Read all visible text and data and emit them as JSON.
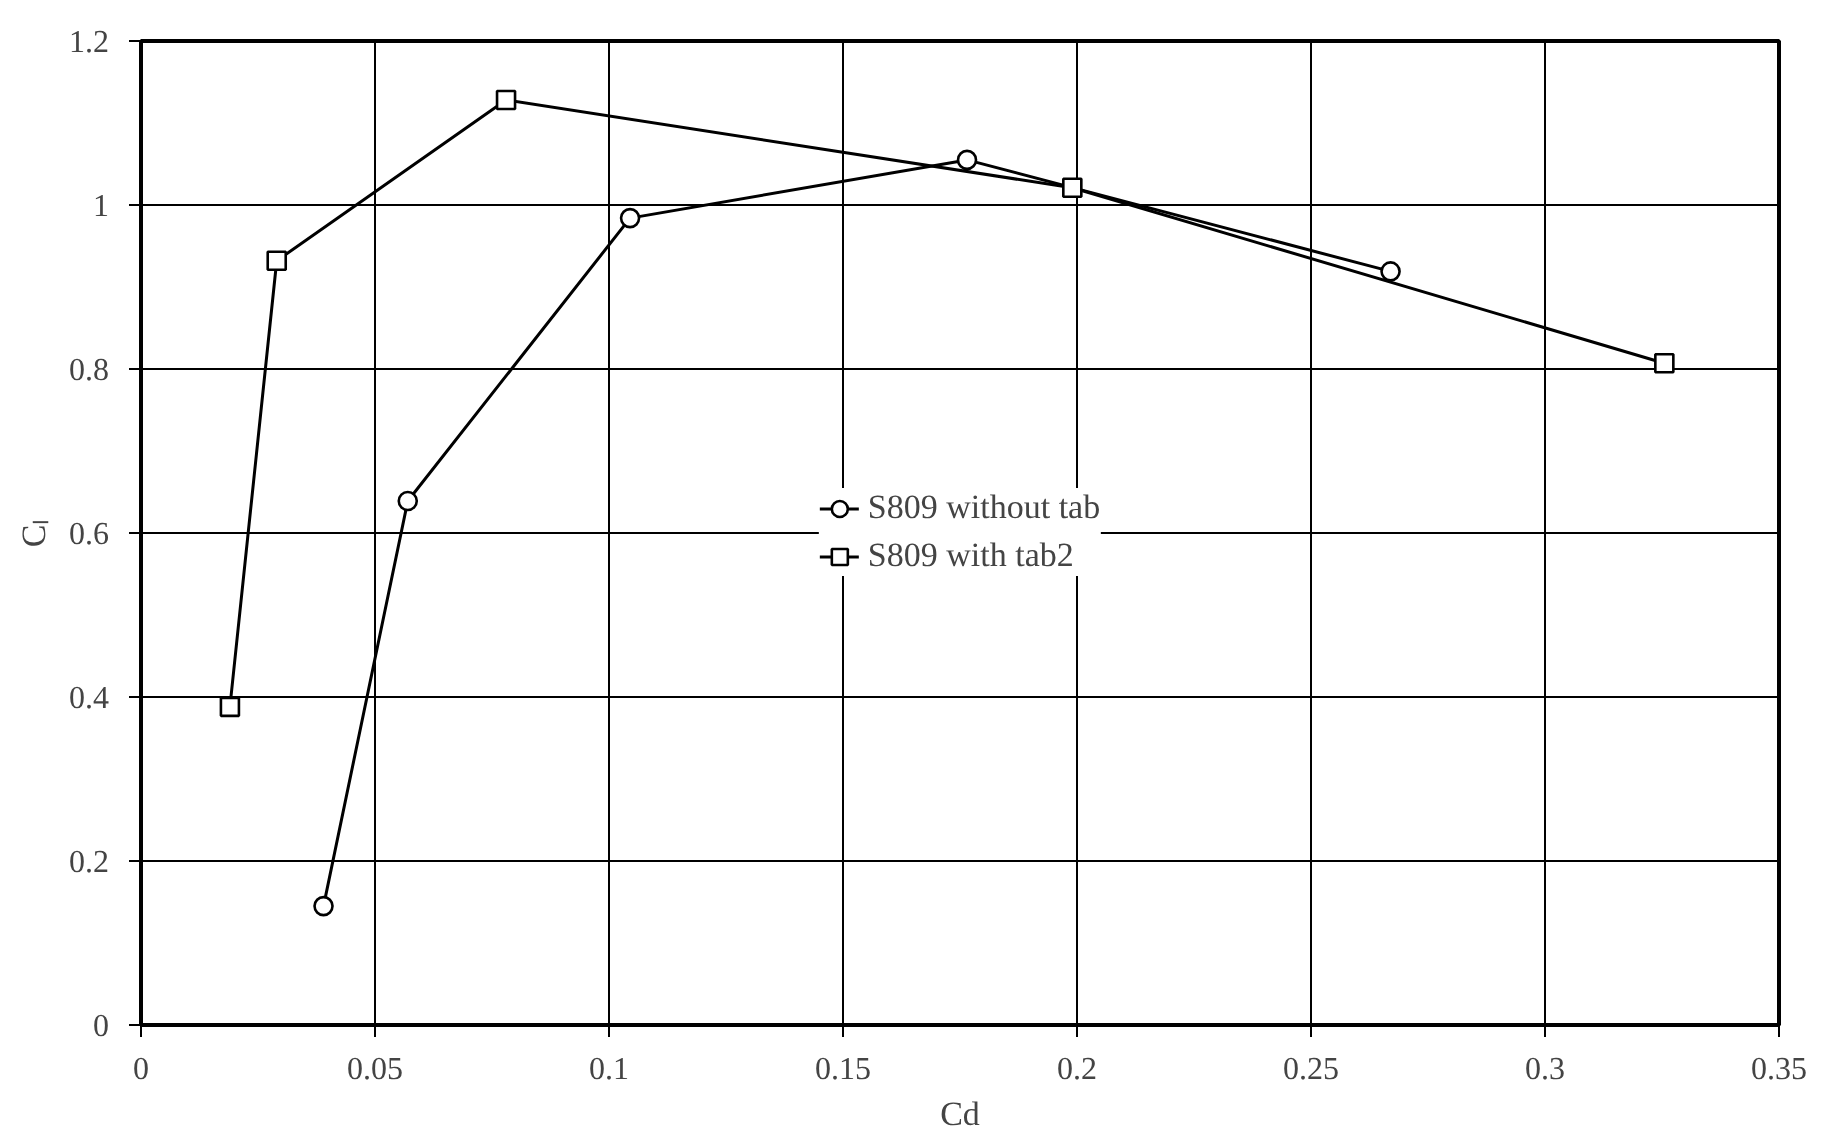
{
  "chart_data": {
    "type": "line",
    "xlabel": "Cd",
    "ylabel": "Cₗ",
    "series": [
      {
        "name": "S809 without tab",
        "color": "#000000",
        "marker": "circle",
        "x": [
          0.039,
          0.057,
          0.1045,
          0.1765,
          0.267
        ],
        "values": [
          0.145,
          0.639,
          0.984,
          1.055,
          0.919
        ]
      },
      {
        "name": "S809 with tab2",
        "color": "#000000",
        "marker": "square",
        "x": [
          0.019,
          0.029,
          0.078,
          0.199,
          0.3255
        ],
        "values": [
          0.388,
          0.932,
          1.128,
          1.021,
          0.807
        ]
      }
    ],
    "xlim": [
      0,
      0.35
    ],
    "xticks": [
      0,
      0.05,
      0.1,
      0.15,
      0.2,
      0.25,
      0.3,
      0.35
    ],
    "ylim": [
      0,
      1.2
    ],
    "yticks": [
      0,
      0.2,
      0.4,
      0.6,
      0.8,
      1,
      1.2
    ],
    "grid": true,
    "legend": "center",
    "line_style": "solid"
  }
}
